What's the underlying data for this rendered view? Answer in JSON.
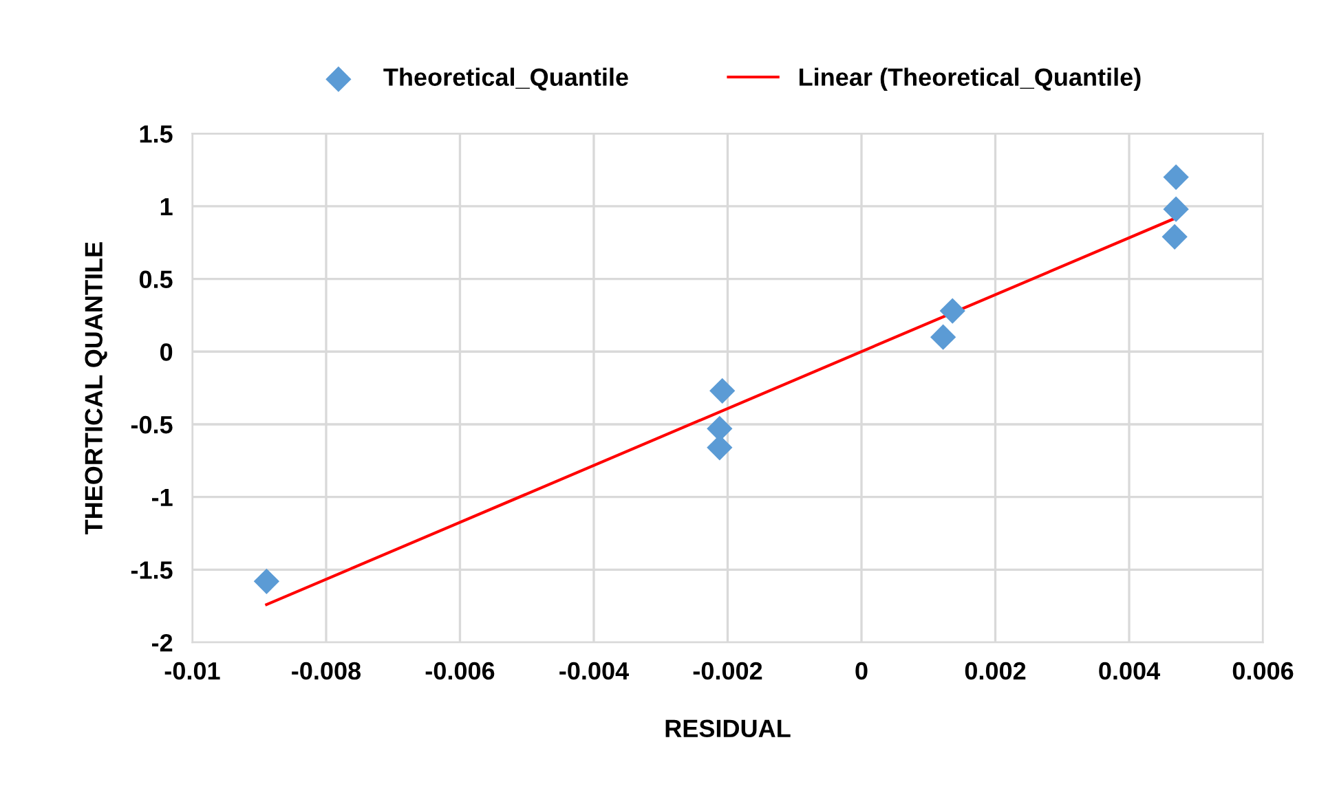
{
  "chart_data": {
    "type": "scatter",
    "xlabel": "RESIDUAL",
    "ylabel": "THEORTICAL QUANTILE",
    "xlim": [
      -0.01,
      0.006
    ],
    "xticks": [
      -0.01,
      -0.008,
      -0.006,
      -0.004,
      -0.002,
      0,
      0.002,
      0.004,
      0.006
    ],
    "ylim": [
      -2,
      1.5
    ],
    "yticks": [
      -2,
      -1.5,
      -1,
      -0.5,
      0,
      0.5,
      1,
      1.5
    ],
    "grid": true,
    "legend": "top",
    "marker": "diamond",
    "series": [
      {
        "name": "Theoretical_Quantile",
        "color": "#5b9bd5",
        "x": [
          -0.00889,
          -0.00208,
          -0.00212,
          -0.00212,
          0.00122,
          0.00136,
          0.0047,
          0.0047,
          0.00468
        ],
        "values": [
          -1.58,
          -0.27,
          -0.53,
          -0.66,
          0.1,
          0.28,
          1.2,
          0.98,
          0.79
        ]
      },
      {
        "name": "Linear (Theoretical_Quantile)",
        "type": "line",
        "color": "#ff0000",
        "marker": "none",
        "x": [
          -0.00889,
          0.0047
        ],
        "values": [
          -1.74,
          0.92
        ]
      }
    ]
  }
}
